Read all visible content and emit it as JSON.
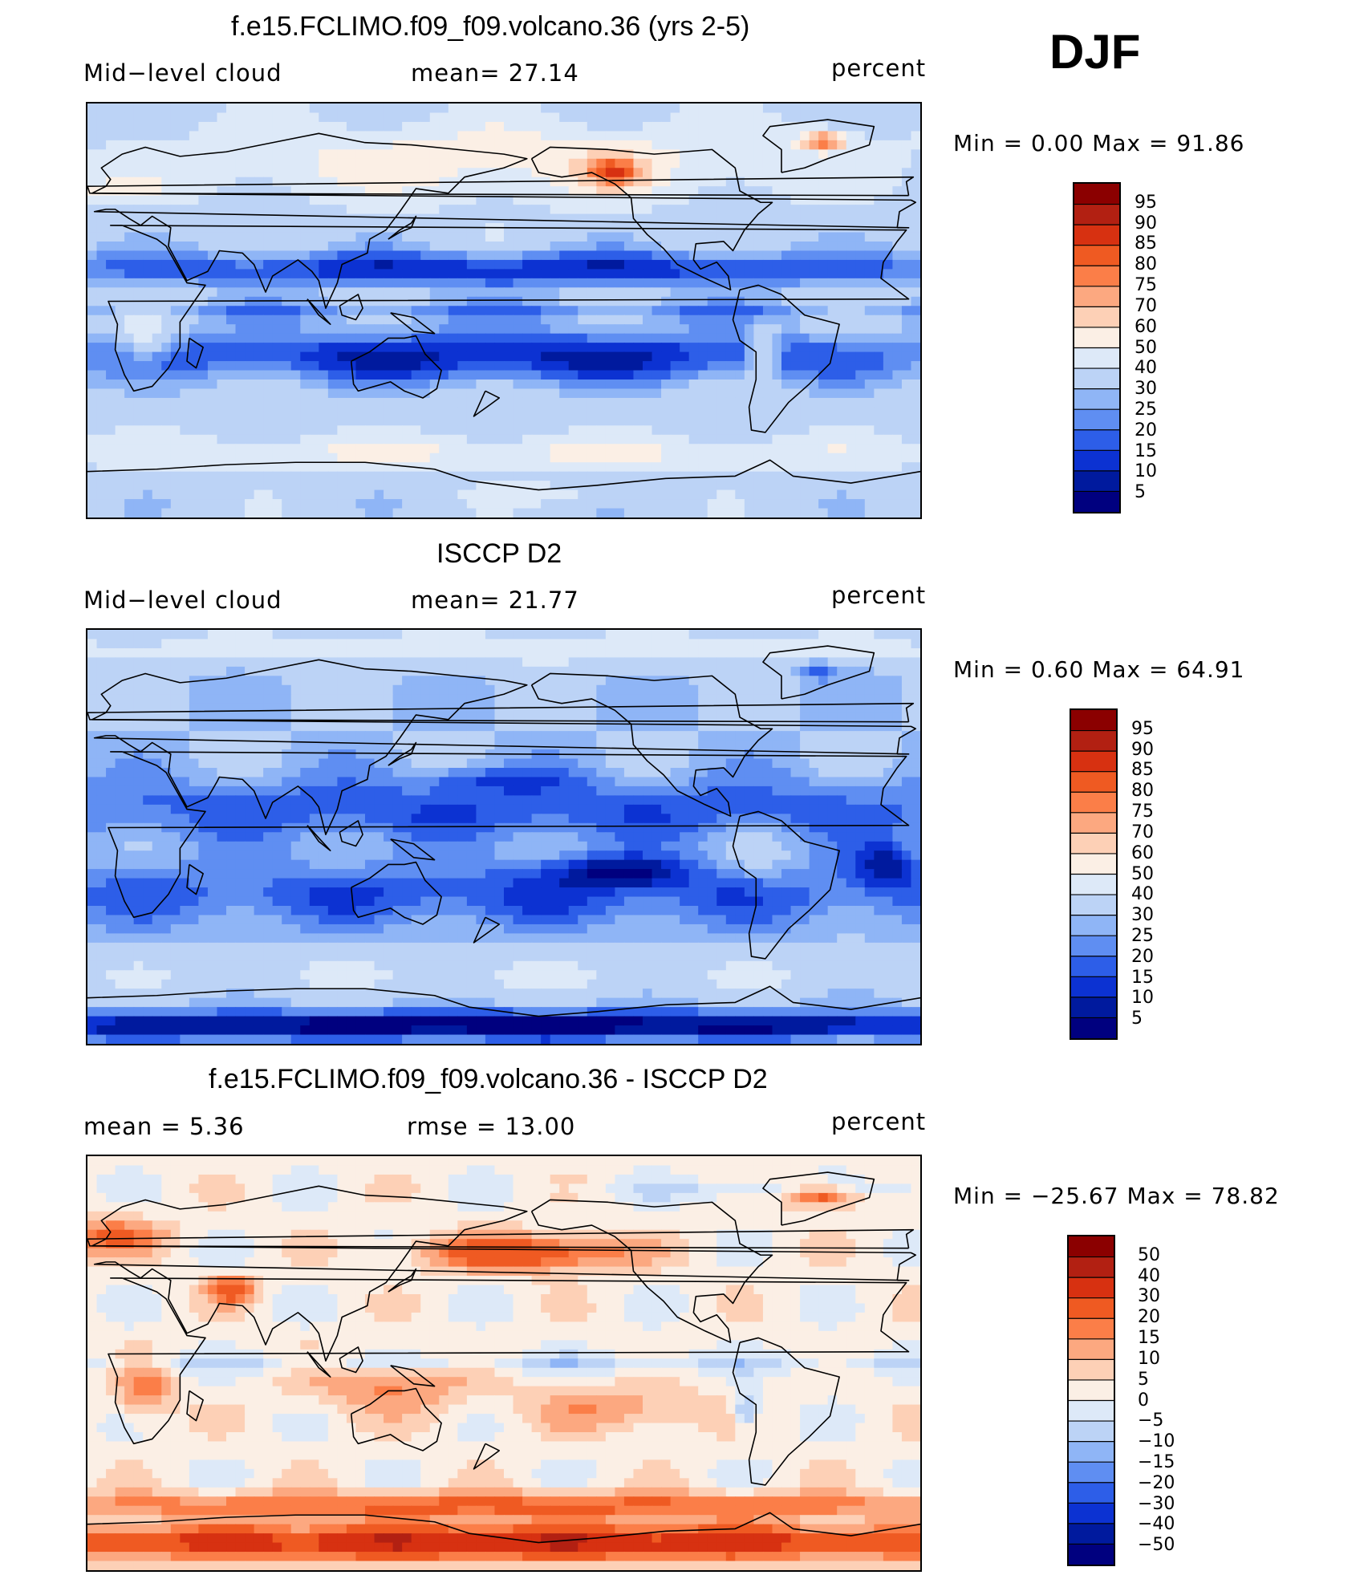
{
  "season": "DJF",
  "panels": [
    {
      "title": "f.e15.FCLIMO.f09_f09.volcano.36 (yrs 2-5)",
      "left_label": "Mid−level cloud",
      "mid_label": "mean=   27.14",
      "units": "percent",
      "minmax": "Min =    0.00 Max =   91.86",
      "colorbar_labels": [
        "95",
        "90",
        "85",
        "80",
        "75",
        "70",
        "60",
        "50",
        "40",
        "30",
        "25",
        "20",
        "15",
        "10",
        "5"
      ],
      "colorbar_colors": [
        "#8b0000",
        "#b22012",
        "#d73111",
        "#ef5a22",
        "#fb7e48",
        "#fca880",
        "#fdd0b6",
        "#fbefe5",
        "#dde9f8",
        "#bcd3f6",
        "#8fb5f6",
        "#5f8ef2",
        "#2d5ee8",
        "#0c32d2",
        "#001a9e",
        "#00007f"
      ],
      "field": "model"
    },
    {
      "title": "ISCCP D2",
      "left_label": "Mid−level cloud",
      "mid_label": "mean=   21.77",
      "units": "percent",
      "minmax": "Min =    0.60 Max =   64.91",
      "colorbar_labels": [
        "95",
        "90",
        "85",
        "80",
        "75",
        "70",
        "60",
        "50",
        "40",
        "30",
        "25",
        "20",
        "15",
        "10",
        "5"
      ],
      "colorbar_colors": [
        "#8b0000",
        "#b22012",
        "#d73111",
        "#ef5a22",
        "#fb7e48",
        "#fca880",
        "#fdd0b6",
        "#fbefe5",
        "#dde9f8",
        "#bcd3f6",
        "#8fb5f6",
        "#5f8ef2",
        "#2d5ee8",
        "#0c32d2",
        "#001a9e",
        "#00007f"
      ],
      "field": "obs"
    },
    {
      "title": "f.e15.FCLIMO.f09_f09.volcano.36 - ISCCP D2",
      "left_label": "mean =    5.36",
      "mid_label": "rmse =    13.00",
      "units": "percent",
      "minmax": "Min = −25.67 Max =   78.82",
      "colorbar_labels": [
        "50",
        "40",
        "30",
        "20",
        "15",
        "10",
        "5",
        "0",
        "−5",
        "−10",
        "−15",
        "−20",
        "−30",
        "−40",
        "−50"
      ],
      "colorbar_colors": [
        "#8b0000",
        "#b22012",
        "#d73111",
        "#ef5a22",
        "#fb7e48",
        "#fca880",
        "#fdd0b6",
        "#fbefe5",
        "#dde9f8",
        "#bcd3f6",
        "#8fb5f6",
        "#5f8ef2",
        "#2d5ee8",
        "#0c32d2",
        "#001a9e",
        "#00007f"
      ],
      "field": "diff"
    }
  ]
}
